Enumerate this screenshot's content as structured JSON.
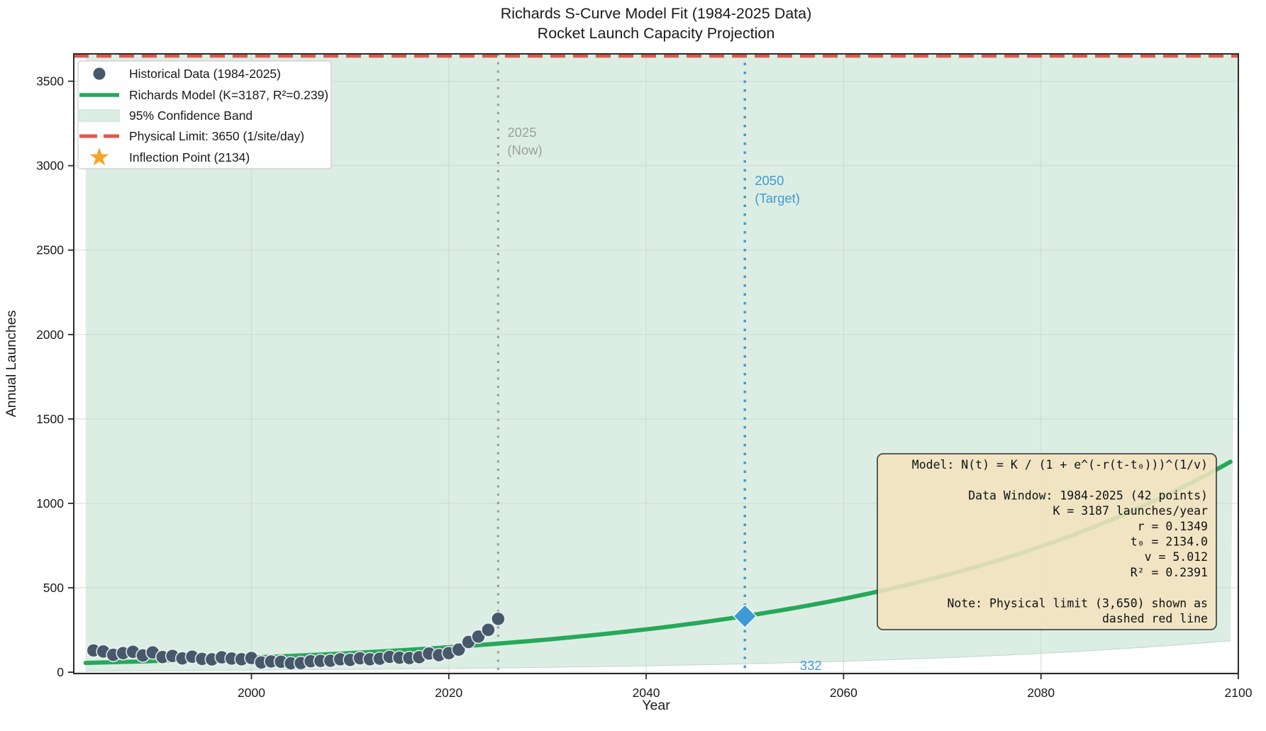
{
  "figure": {
    "title_line1": "Richards S-Curve Model Fit (1984-2025 Data)",
    "title_line2": "Rocket Launch Capacity Projection"
  },
  "chart_data": {
    "type": "line",
    "title": "Richards S-Curve Model Fit (1984-2025 Data) — Rocket Launch Capacity Projection",
    "xlabel": "Year",
    "ylabel": "Annual Launches",
    "xlim": [
      1982,
      2100
    ],
    "ylim": [
      -8,
      3662
    ],
    "x_ticks": [
      2000,
      2020,
      2040,
      2060,
      2080,
      2100
    ],
    "y_ticks": [
      0,
      500,
      1000,
      1500,
      2000,
      2500,
      3000,
      3500
    ],
    "grid": true,
    "legend_position": "upper-left",
    "colors": {
      "scatter": "#47586A",
      "scatter_edge": "#F2F5F7",
      "model_line": "#27A85A",
      "band_fill": "#DCEEE4",
      "band_edge": "#C2DCCD",
      "limit_line": "#E0584A",
      "now_line": "#9AA0A0",
      "target_line": "#4099D6",
      "star": "#F4A62A",
      "grid_line": "#CCD7D2",
      "box_fill": "#F2E2BE",
      "box_edge": "#4A4A4A",
      "text": "#1A1A1A"
    },
    "series": [
      {
        "name": "Historical Data (1984-2025)",
        "type": "scatter",
        "years": [
          1984,
          1985,
          1986,
          1987,
          1988,
          1989,
          1990,
          1991,
          1992,
          1993,
          1994,
          1995,
          1996,
          1997,
          1998,
          1999,
          2000,
          2001,
          2002,
          2003,
          2004,
          2005,
          2006,
          2007,
          2008,
          2009,
          2010,
          2011,
          2012,
          2013,
          2014,
          2015,
          2016,
          2017,
          2018,
          2019,
          2020,
          2021,
          2022,
          2023,
          2024,
          2025
        ],
        "values": [
          129,
          123,
          103,
          113,
          121,
          99,
          117,
          90,
          96,
          82,
          92,
          79,
          76,
          88,
          81,
          77,
          84,
          58,
          64,
          62,
          53,
          54,
          65,
          67,
          68,
          77,
          73,
          83,
          77,
          80,
          91,
          86,
          84,
          89,
          111,
          101,
          113,
          134,
          179,
          211,
          251,
          316
        ]
      },
      {
        "name": "Richards Model (K=3187, R²=0.239)",
        "type": "line",
        "model_params": {
          "K": 3187,
          "r": 0.1349,
          "t0": 2134.0,
          "v": 5.012
        },
        "x_range": [
          1983.2,
          2100
        ]
      },
      {
        "name": "95% Confidence Band",
        "type": "band",
        "x_range": [
          1983.2,
          2100
        ],
        "lower_fraction_of_model": 0.15,
        "upper_clip_value": 3660
      },
      {
        "name": "Physical Limit: 3650 (1/site/day)",
        "type": "hline",
        "value": 3650
      },
      {
        "name": "Inflection Point (2134)",
        "type": "marker",
        "marker": "star",
        "x": 2134
      }
    ],
    "annotations": {
      "now_line": {
        "x": 2025,
        "label_line1": "2025",
        "label_line2": "(Now)"
      },
      "target_line": {
        "x": 2050,
        "label_line1": "2050",
        "label_line2": "(Target)"
      },
      "target_point": {
        "x": 2050,
        "y": 332,
        "label": "332"
      }
    },
    "info_box": {
      "lines": [
        "Model: N(t) = K / (1 + e^(-r(t-t₀)))^(1/v)",
        "",
        "Data Window: 1984-2025 (42 points)",
        "K = 3187 launches/year",
        "r = 0.1349",
        "t₀ = 2134.0",
        "v = 5.012",
        "R² = 0.2391",
        "",
        "Note: Physical limit (3,650) shown as",
        "dashed red line"
      ]
    },
    "legend": {
      "entries": [
        {
          "marker": "circle",
          "label": "Historical Data (1984-2025)"
        },
        {
          "marker": "line",
          "label": "Richards Model (K=3187, R²=0.239)"
        },
        {
          "marker": "patch",
          "label": "95% Confidence Band"
        },
        {
          "marker": "dashes",
          "label": "Physical Limit: 3650 (1/site/day)"
        },
        {
          "marker": "star",
          "label": "Inflection Point (2134)"
        }
      ]
    }
  }
}
